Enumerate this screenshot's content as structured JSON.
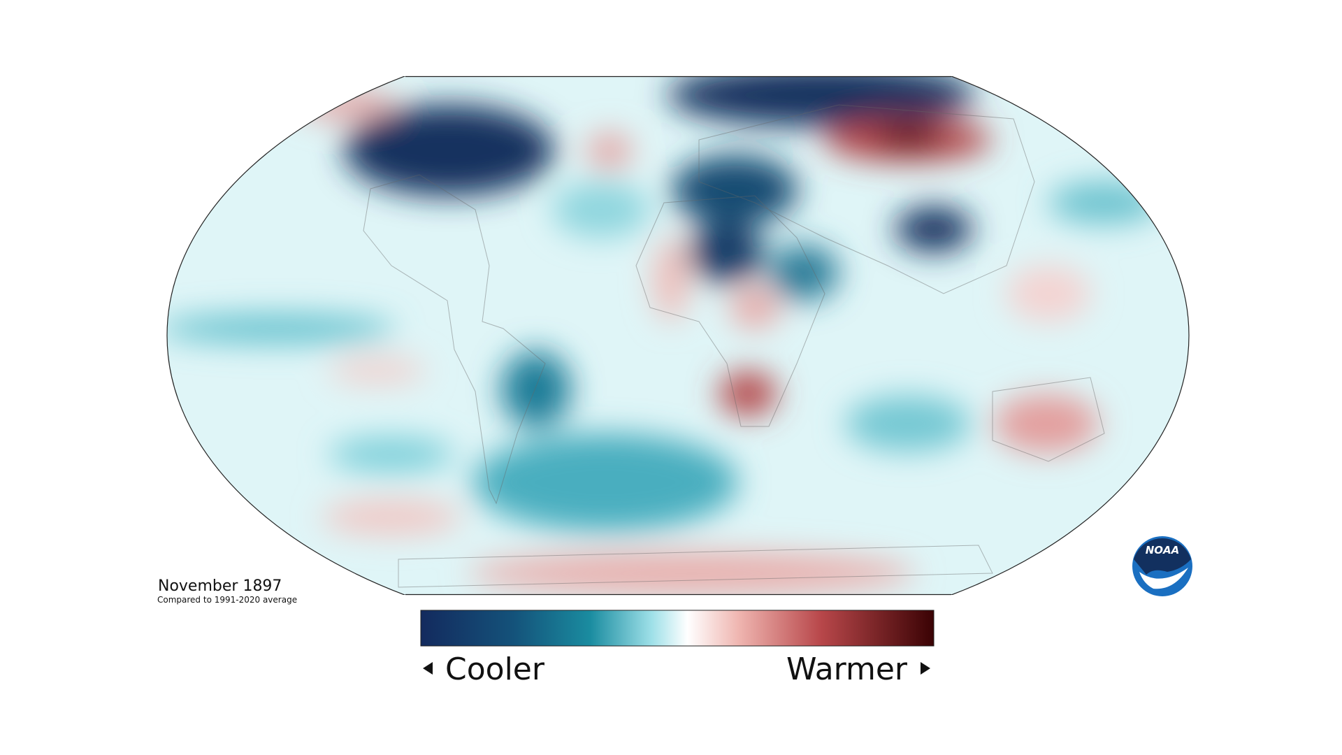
{
  "map": {
    "title": "November 1897",
    "subtitle": "Compared to 1991-2020 average"
  },
  "legend": {
    "low_label": "Cooler",
    "high_label": "Warmer"
  },
  "logo": {
    "text": "NOAA"
  }
}
